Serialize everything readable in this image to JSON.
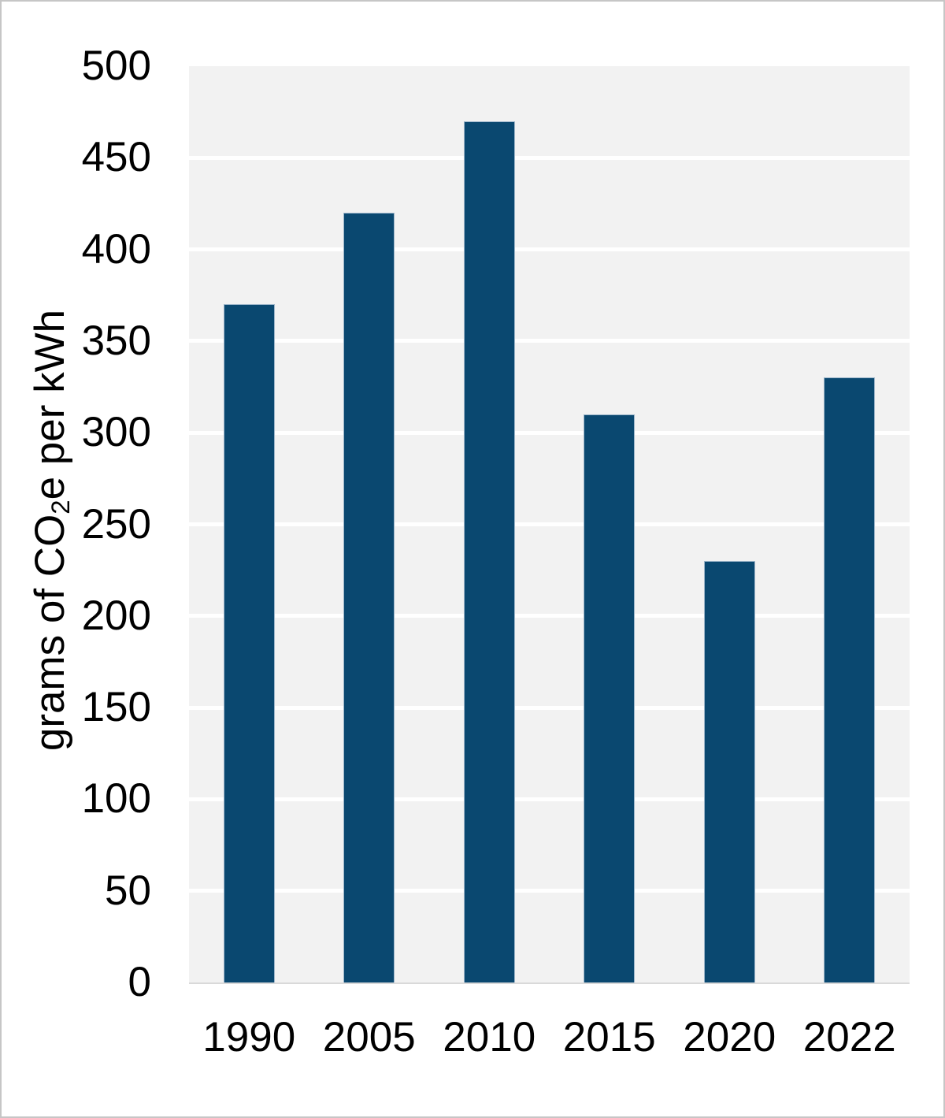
{
  "chart_data": {
    "type": "bar",
    "categories": [
      "1990",
      "2005",
      "2010",
      "2015",
      "2020",
      "2022"
    ],
    "values": [
      370,
      420,
      470,
      310,
      230,
      330
    ],
    "series": [
      {
        "name": "grams of CO2e per kWh",
        "values": [
          370,
          420,
          470,
          310,
          230,
          330
        ]
      }
    ],
    "title": "",
    "xlabel": "",
    "ylabel": "grams of CO₂e per kWh",
    "ylabel_parts": {
      "pre": "grams of CO",
      "sub": "2",
      "post": "e per kWh"
    },
    "ylim": [
      0,
      500
    ],
    "ytick_interval": 50,
    "yticks": [
      "0",
      "50",
      "100",
      "150",
      "200",
      "250",
      "300",
      "350",
      "400",
      "450",
      "500"
    ],
    "grid": "horizontal gridlines on, white over light-gray plot background",
    "legend": "none",
    "colors": {
      "bar_fill": "#0a4870",
      "bar_border": "#9db6ca",
      "plot_background": "#f2f2f2",
      "gridline": "#ffffff",
      "axis_line": "#d9d9d9",
      "text": "#000000",
      "frame_border": "#c6c6c6",
      "page_background": "#ffffff"
    }
  }
}
